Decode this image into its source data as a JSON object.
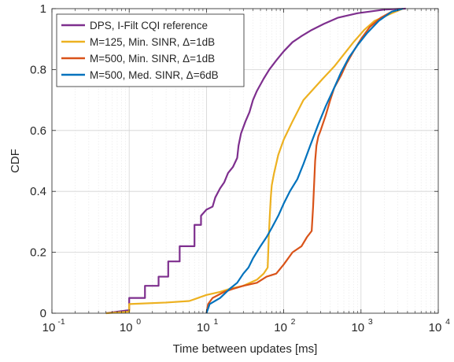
{
  "chart_data": {
    "type": "line",
    "xlabel": "Time between updates [ms]",
    "ylabel": "CDF",
    "xscale": "log",
    "xlim": [
      0.1,
      10000
    ],
    "ylim": [
      0,
      1
    ],
    "grid": true,
    "legend_position": "top-left",
    "x_tick_labels": [
      {
        "base": "10",
        "exp": "-1"
      },
      {
        "base": "10",
        "exp": "0"
      },
      {
        "base": "10",
        "exp": "1"
      },
      {
        "base": "10",
        "exp": "2"
      },
      {
        "base": "10",
        "exp": "3"
      },
      {
        "base": "10",
        "exp": "4"
      }
    ],
    "x_ticks": [
      0.1,
      1,
      10,
      100,
      1000,
      10000
    ],
    "y_ticks": [
      0,
      0.2,
      0.4,
      0.6,
      0.8,
      1
    ],
    "y_tick_labels": [
      "0",
      "0.2",
      "0.4",
      "0.6",
      "0.8",
      "1"
    ],
    "series": [
      {
        "name": "DPS, I-Filt CQI reference",
        "color": "#7e2f8e",
        "step": true,
        "points": [
          [
            0.5,
            0
          ],
          [
            1.0,
            0.01
          ],
          [
            1.0,
            0.05
          ],
          [
            1.6,
            0.05
          ],
          [
            1.6,
            0.09
          ],
          [
            2.4,
            0.09
          ],
          [
            2.4,
            0.12
          ],
          [
            3.2,
            0.12
          ],
          [
            3.2,
            0.17
          ],
          [
            4.5,
            0.17
          ],
          [
            4.5,
            0.22
          ],
          [
            7.0,
            0.22
          ],
          [
            7.0,
            0.29
          ],
          [
            8.5,
            0.29
          ],
          [
            8.5,
            0.32
          ],
          [
            10,
            0.34
          ],
          [
            12,
            0.35
          ],
          [
            13,
            0.38
          ],
          [
            15,
            0.41
          ],
          [
            17,
            0.43
          ],
          [
            19,
            0.46
          ],
          [
            22,
            0.48
          ],
          [
            25,
            0.51
          ],
          [
            26,
            0.55
          ],
          [
            28,
            0.59
          ],
          [
            32,
            0.63
          ],
          [
            36,
            0.66
          ],
          [
            40,
            0.7
          ],
          [
            45,
            0.73
          ],
          [
            55,
            0.77
          ],
          [
            65,
            0.8
          ],
          [
            80,
            0.83
          ],
          [
            100,
            0.86
          ],
          [
            130,
            0.89
          ],
          [
            170,
            0.91
          ],
          [
            230,
            0.93
          ],
          [
            330,
            0.95
          ],
          [
            500,
            0.97
          ],
          [
            900,
            0.985
          ],
          [
            2000,
            0.997
          ],
          [
            3800,
            1.0
          ]
        ]
      },
      {
        "name": "M=125, Min. SINR, Δ=1dB",
        "color": "#edb120",
        "points": [
          [
            0.5,
            0
          ],
          [
            1.0,
            0.005
          ],
          [
            1.0,
            0.03
          ],
          [
            3,
            0.035
          ],
          [
            6,
            0.04
          ],
          [
            10,
            0.06
          ],
          [
            15,
            0.07
          ],
          [
            20,
            0.08
          ],
          [
            30,
            0.09
          ],
          [
            45,
            0.11
          ],
          [
            55,
            0.13
          ],
          [
            62,
            0.15
          ],
          [
            63,
            0.2
          ],
          [
            64,
            0.25
          ],
          [
            66,
            0.32
          ],
          [
            68,
            0.38
          ],
          [
            70,
            0.42
          ],
          [
            75,
            0.46
          ],
          [
            85,
            0.52
          ],
          [
            100,
            0.57
          ],
          [
            130,
            0.63
          ],
          [
            180,
            0.7
          ],
          [
            250,
            0.74
          ],
          [
            320,
            0.77
          ],
          [
            450,
            0.81
          ],
          [
            600,
            0.85
          ],
          [
            800,
            0.89
          ],
          [
            1100,
            0.93
          ],
          [
            1500,
            0.96
          ],
          [
            2500,
            0.985
          ],
          [
            3500,
            1.0
          ]
        ]
      },
      {
        "name": "M=500, Min. SINR, Δ=1dB",
        "color": "#d95319",
        "points": [
          [
            10,
            0
          ],
          [
            10.5,
            0.03
          ],
          [
            12,
            0.05
          ],
          [
            17,
            0.07
          ],
          [
            22,
            0.08
          ],
          [
            30,
            0.09
          ],
          [
            45,
            0.1
          ],
          [
            60,
            0.12
          ],
          [
            80,
            0.13
          ],
          [
            100,
            0.16
          ],
          [
            130,
            0.2
          ],
          [
            170,
            0.22
          ],
          [
            200,
            0.25
          ],
          [
            230,
            0.27
          ],
          [
            240,
            0.35
          ],
          [
            250,
            0.45
          ],
          [
            255,
            0.5
          ],
          [
            265,
            0.55
          ],
          [
            280,
            0.58
          ],
          [
            300,
            0.6
          ],
          [
            350,
            0.65
          ],
          [
            400,
            0.7
          ],
          [
            450,
            0.74
          ],
          [
            550,
            0.78
          ],
          [
            650,
            0.82
          ],
          [
            800,
            0.86
          ],
          [
            1000,
            0.9
          ],
          [
            1300,
            0.94
          ],
          [
            1800,
            0.97
          ],
          [
            2500,
            0.99
          ],
          [
            3500,
            1.0
          ]
        ]
      },
      {
        "name": "M=500, Med. SINR, Δ=6dB",
        "color": "#0072bd",
        "points": [
          [
            10,
            0
          ],
          [
            11,
            0.03
          ],
          [
            15,
            0.05
          ],
          [
            20,
            0.08
          ],
          [
            25,
            0.1
          ],
          [
            30,
            0.13
          ],
          [
            35,
            0.15
          ],
          [
            40,
            0.18
          ],
          [
            50,
            0.22
          ],
          [
            60,
            0.25
          ],
          [
            70,
            0.28
          ],
          [
            85,
            0.32
          ],
          [
            100,
            0.36
          ],
          [
            120,
            0.4
          ],
          [
            150,
            0.44
          ],
          [
            180,
            0.49
          ],
          [
            220,
            0.55
          ],
          [
            280,
            0.62
          ],
          [
            350,
            0.68
          ],
          [
            450,
            0.74
          ],
          [
            550,
            0.79
          ],
          [
            700,
            0.84
          ],
          [
            900,
            0.88
          ],
          [
            1200,
            0.92
          ],
          [
            1700,
            0.96
          ],
          [
            2500,
            0.99
          ],
          [
            3500,
            1.0
          ]
        ]
      }
    ]
  }
}
